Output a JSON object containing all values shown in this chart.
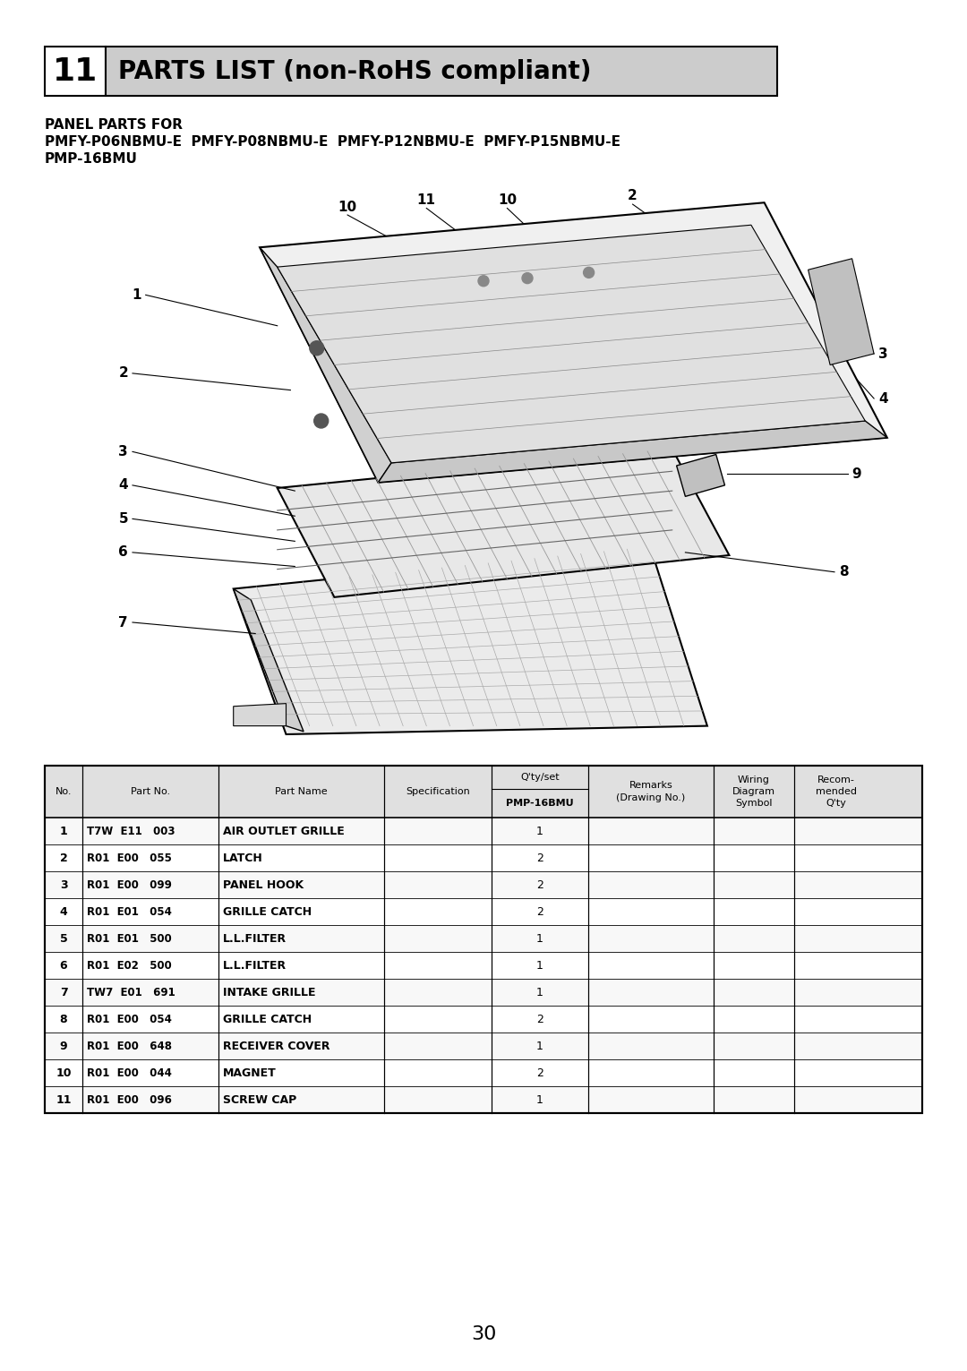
{
  "page_number": "30",
  "section_number": "11",
  "section_title": "PARTS LIST (non-RoHS compliant)",
  "panel_header_line1": "PANEL PARTS FOR",
  "panel_header_line2": "PMFY-P06NBMU-E  PMFY-P08NBMU-E  PMFY-P12NBMU-E  PMFY-P15NBMU-E",
  "panel_header_line3": "PMP-16BMU",
  "table_subheader": "PMP-16BMU",
  "rows": [
    {
      "no": 1,
      "part_no": "T7W  E11   003",
      "part_name": "AIR OUTLET GRILLE",
      "spec": "",
      "qty": "1"
    },
    {
      "no": 2,
      "part_no": "R01  E00   055",
      "part_name": "LATCH",
      "spec": "",
      "qty": "2"
    },
    {
      "no": 3,
      "part_no": "R01  E00   099",
      "part_name": "PANEL HOOK",
      "spec": "",
      "qty": "2"
    },
    {
      "no": 4,
      "part_no": "R01  E01   054",
      "part_name": "GRILLE CATCH",
      "spec": "",
      "qty": "2"
    },
    {
      "no": 5,
      "part_no": "R01  E01   500",
      "part_name": "L.L.FILTER",
      "spec": "",
      "qty": "1"
    },
    {
      "no": 6,
      "part_no": "R01  E02   500",
      "part_name": "L.L.FILTER",
      "spec": "",
      "qty": "1"
    },
    {
      "no": 7,
      "part_no": "TW7  E01   691",
      "part_name": "INTAKE GRILLE",
      "spec": "",
      "qty": "1"
    },
    {
      "no": 8,
      "part_no": "R01  E00   054",
      "part_name": "GRILLE CATCH",
      "spec": "",
      "qty": "2"
    },
    {
      "no": 9,
      "part_no": "R01  E00   648",
      "part_name": "RECEIVER COVER",
      "spec": "",
      "qty": "1"
    },
    {
      "no": 10,
      "part_no": "R01  E00   044",
      "part_name": "MAGNET",
      "spec": "",
      "qty": "2"
    },
    {
      "no": 11,
      "part_no": "R01  E00   096",
      "part_name": "SCREW CAP",
      "spec": "",
      "qty": "1"
    }
  ],
  "bg_color": "#ffffff",
  "header_gray": "#cccccc",
  "table_header_gray": "#d8d8d8"
}
